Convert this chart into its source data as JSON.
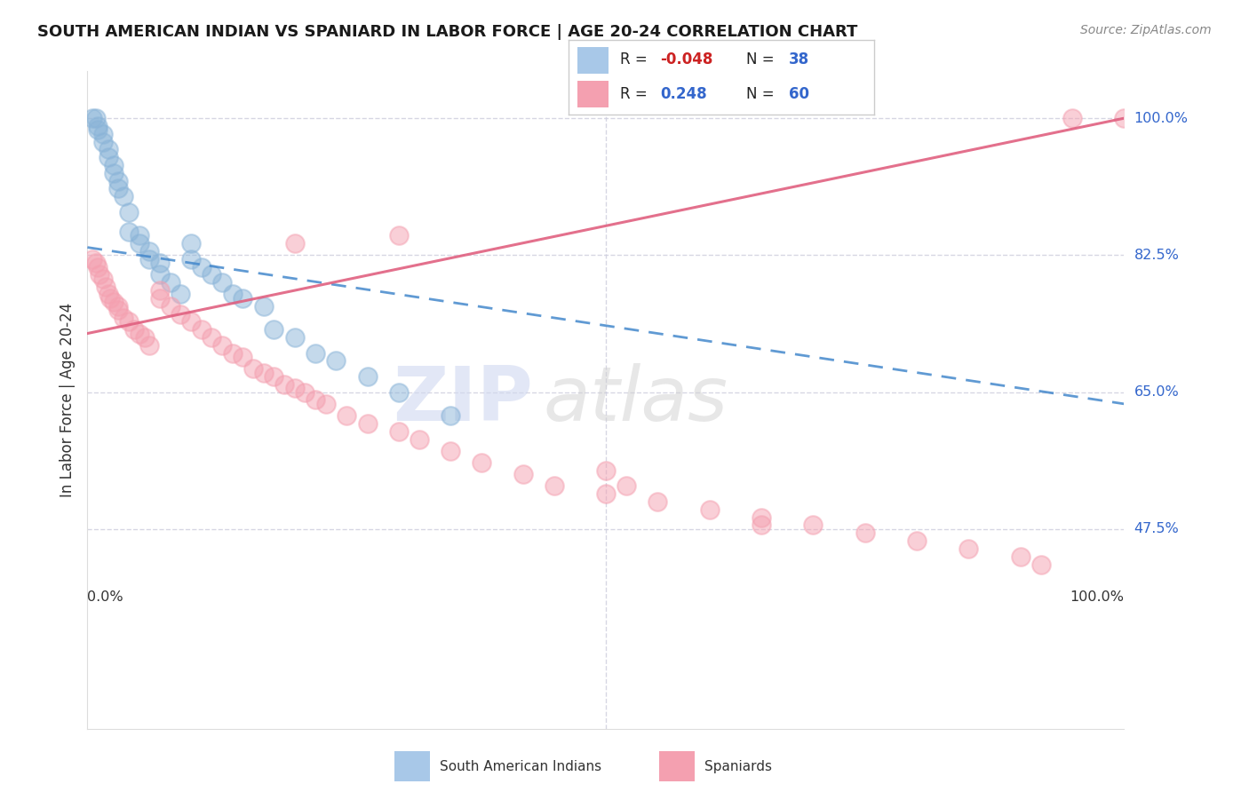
{
  "title": "SOUTH AMERICAN INDIAN VS SPANIARD IN LABOR FORCE | AGE 20-24 CORRELATION CHART",
  "source": "Source: ZipAtlas.com",
  "ylabel": "In Labor Force | Age 20-24",
  "ytick_vals": [
    1.0,
    0.825,
    0.65,
    0.475
  ],
  "ytick_labels": [
    "100.0%",
    "82.5%",
    "65.0%",
    "47.5%"
  ],
  "xmin": 0.0,
  "xmax": 1.0,
  "ymin": 0.22,
  "ymax": 1.06,
  "blue_line_start_y": 0.835,
  "blue_line_end_y": 0.635,
  "pink_line_start_y": 0.725,
  "pink_line_end_y": 1.0,
  "blue_color": "#8ab4d8",
  "pink_color": "#f4a0b0",
  "blue_line_color": "#4488cc",
  "pink_line_color": "#e06080",
  "grid_color": "#ccccdd",
  "watermark_zip": "ZIP",
  "watermark_atlas": "atlas",
  "blue_scatter_x": [
    0.005,
    0.008,
    0.01,
    0.01,
    0.015,
    0.015,
    0.02,
    0.02,
    0.025,
    0.025,
    0.03,
    0.03,
    0.035,
    0.04,
    0.04,
    0.05,
    0.05,
    0.06,
    0.06,
    0.07,
    0.07,
    0.08,
    0.09,
    0.1,
    0.1,
    0.11,
    0.12,
    0.13,
    0.14,
    0.15,
    0.17,
    0.18,
    0.2,
    0.22,
    0.24,
    0.27,
    0.3,
    0.35
  ],
  "blue_scatter_y": [
    1.0,
    1.0,
    0.99,
    0.985,
    0.98,
    0.97,
    0.96,
    0.95,
    0.94,
    0.93,
    0.92,
    0.91,
    0.9,
    0.88,
    0.855,
    0.85,
    0.84,
    0.83,
    0.82,
    0.815,
    0.8,
    0.79,
    0.775,
    0.84,
    0.82,
    0.81,
    0.8,
    0.79,
    0.775,
    0.77,
    0.76,
    0.73,
    0.72,
    0.7,
    0.69,
    0.67,
    0.65,
    0.62
  ],
  "pink_scatter_x": [
    0.005,
    0.008,
    0.01,
    0.012,
    0.015,
    0.018,
    0.02,
    0.022,
    0.025,
    0.03,
    0.03,
    0.035,
    0.04,
    0.045,
    0.05,
    0.055,
    0.06,
    0.07,
    0.07,
    0.08,
    0.09,
    0.1,
    0.11,
    0.12,
    0.13,
    0.14,
    0.15,
    0.16,
    0.17,
    0.18,
    0.19,
    0.2,
    0.21,
    0.22,
    0.23,
    0.25,
    0.27,
    0.3,
    0.32,
    0.35,
    0.38,
    0.42,
    0.45,
    0.5,
    0.52,
    0.55,
    0.6,
    0.65,
    0.7,
    0.75,
    0.8,
    0.85,
    0.9,
    0.92,
    0.95,
    1.0,
    0.2,
    0.3,
    0.5,
    0.65
  ],
  "pink_scatter_y": [
    0.82,
    0.815,
    0.81,
    0.8,
    0.795,
    0.785,
    0.775,
    0.77,
    0.765,
    0.76,
    0.755,
    0.745,
    0.74,
    0.73,
    0.725,
    0.72,
    0.71,
    0.78,
    0.77,
    0.76,
    0.75,
    0.74,
    0.73,
    0.72,
    0.71,
    0.7,
    0.695,
    0.68,
    0.675,
    0.67,
    0.66,
    0.655,
    0.65,
    0.64,
    0.635,
    0.62,
    0.61,
    0.6,
    0.59,
    0.575,
    0.56,
    0.545,
    0.53,
    0.52,
    0.53,
    0.51,
    0.5,
    0.49,
    0.48,
    0.47,
    0.46,
    0.45,
    0.44,
    0.43,
    1.0,
    1.0,
    0.84,
    0.85,
    0.55,
    0.48
  ]
}
